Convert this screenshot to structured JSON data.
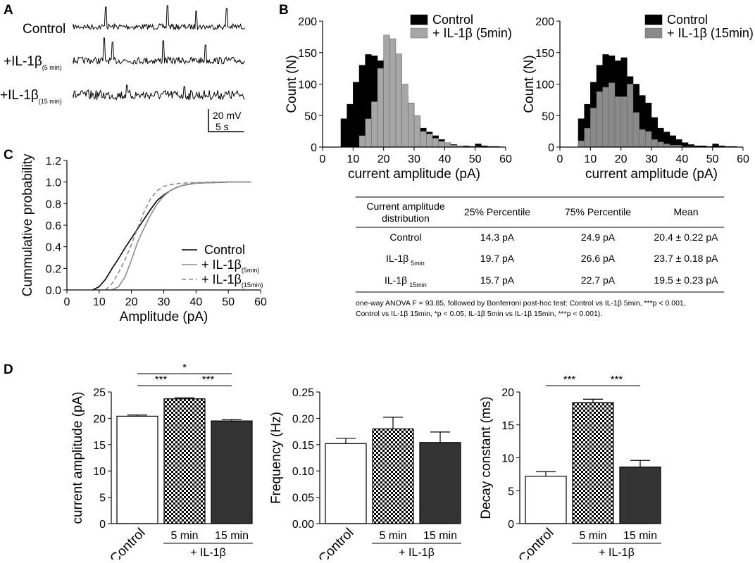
{
  "panels": {
    "a": "A",
    "b": "B",
    "c": "C",
    "d": "D"
  },
  "traces": {
    "labels": [
      {
        "main": "Control",
        "sub": ""
      },
      {
        "main": "+IL-1β",
        "sub": "(5 min)"
      },
      {
        "main": "+IL-1β",
        "sub": "(15 min)"
      }
    ],
    "scale_v": "20 mV",
    "scale_t": "5 s"
  },
  "table": {
    "headers": [
      "Current amplitude distribution",
      "25% Percentile",
      "75% Percentile",
      "Mean"
    ],
    "header_line1": "Current amplitude",
    "header_line2": "distribution",
    "rows": [
      {
        "label": "Control",
        "sub": "",
        "p25": "14.3 pA",
        "p75": "24.9 pA",
        "mean": "20.4 ± 0.22 pA"
      },
      {
        "label": "IL-1β",
        "sub": "5min",
        "p25": "19.7 pA",
        "p75": "26.6 pA",
        "mean": "23.7 ± 0.18 pA"
      },
      {
        "label": "IL-1β",
        "sub": "15min",
        "p25": "15.7 pA",
        "p75": "22.7 pA",
        "mean": "19.5 ± 0.23 pA"
      }
    ],
    "note_line1": "one-way ANOVA F = 93.85, followed by Bonferroni post-hoc test: Control vs IL-1β 5min, ***p < 0.001,",
    "note_line2": "Control vs IL-1β 15min, *p < 0.05, IL-1β 5min vs IL-1β 15min, ***p < 0.001)."
  },
  "chart_data": [
    {
      "id": "B-left",
      "type": "bar",
      "title": "",
      "xlabel": "current amplitude (pA)",
      "ylabel": "Count (N)",
      "xlim": [
        0,
        60
      ],
      "ylim": [
        0,
        200
      ],
      "xticks": [
        0,
        10,
        20,
        30,
        40,
        50,
        60
      ],
      "yticks": [
        0,
        50,
        100,
        150,
        200
      ],
      "bin_width": 2,
      "bin_starts": [
        6,
        8,
        10,
        12,
        14,
        16,
        18,
        20,
        22,
        24,
        26,
        28,
        30,
        32,
        34,
        36,
        38,
        40,
        42,
        44,
        46,
        48,
        50,
        52,
        54,
        56
      ],
      "legend": [
        "Control",
        "+ IL-1β (5min)"
      ],
      "series": [
        {
          "name": "Control",
          "color": "#000000",
          "values": [
            45,
            68,
            103,
            130,
            147,
            145,
            137,
            142,
            112,
            100,
            82,
            70,
            47,
            30,
            24,
            18,
            12,
            7,
            4,
            2,
            2,
            1,
            5,
            2,
            1,
            1
          ]
        },
        {
          "name": "+ IL-1β (5min)",
          "color": "#a6a6a6",
          "values": [
            0,
            0,
            0,
            18,
            45,
            72,
            125,
            178,
            172,
            148,
            100,
            70,
            50,
            25,
            21,
            14,
            9,
            7,
            3,
            2,
            1,
            0,
            1,
            0,
            0,
            0
          ]
        }
      ]
    },
    {
      "id": "B-right",
      "type": "bar",
      "title": "",
      "xlabel": "current amplitude (pA)",
      "ylabel": "Count (N)",
      "xlim": [
        0,
        60
      ],
      "ylim": [
        0,
        200
      ],
      "xticks": [
        0,
        10,
        20,
        30,
        40,
        50,
        60
      ],
      "yticks": [
        0,
        50,
        100,
        150,
        200
      ],
      "bin_width": 2,
      "bin_starts": [
        6,
        8,
        10,
        12,
        14,
        16,
        18,
        20,
        22,
        24,
        26,
        28,
        30,
        32,
        34,
        36,
        38,
        40,
        42,
        44,
        46,
        48,
        50,
        52,
        54,
        56
      ],
      "legend": [
        "Control",
        "+ IL-1β (15min)"
      ],
      "series": [
        {
          "name": "Control",
          "color": "#000000",
          "values": [
            45,
            68,
            103,
            130,
            147,
            145,
            137,
            142,
            112,
            100,
            82,
            70,
            47,
            30,
            24,
            18,
            12,
            7,
            4,
            2,
            2,
            1,
            5,
            2,
            1,
            1
          ]
        },
        {
          "name": "+ IL-1β (15min)",
          "color": "#8a8a8a",
          "values": [
            10,
            30,
            62,
            88,
            95,
            102,
            80,
            80,
            100,
            55,
            28,
            25,
            12,
            8,
            5,
            3,
            3,
            1,
            1,
            0,
            0,
            0,
            0,
            0,
            0,
            0
          ]
        }
      ]
    },
    {
      "id": "C",
      "type": "line",
      "title": "",
      "xlabel": "Amplitude (pA)",
      "ylabel": "Cummulative probability",
      "xlim": [
        0,
        60
      ],
      "ylim": [
        0,
        1.2
      ],
      "xticks": [
        0,
        10,
        20,
        30,
        40,
        50,
        60
      ],
      "yticks": [
        0.0,
        0.2,
        0.4,
        0.6,
        0.8,
        1.0,
        1.2
      ],
      "legend": [
        "Control",
        "+ IL-1β(5min)",
        "+ IL-1β(15min)"
      ],
      "series": [
        {
          "name": "Control",
          "color": "#000000",
          "dash": "",
          "x": [
            8,
            10,
            12,
            14,
            16,
            18,
            20,
            22,
            24,
            26,
            28,
            30,
            32,
            34,
            36,
            38,
            40,
            45,
            50,
            57
          ],
          "y": [
            0.0,
            0.03,
            0.1,
            0.2,
            0.29,
            0.39,
            0.48,
            0.57,
            0.66,
            0.75,
            0.83,
            0.88,
            0.92,
            0.95,
            0.97,
            0.98,
            0.99,
            0.995,
            1.0,
            1.0
          ]
        },
        {
          "name": "+ IL-1β(5min)",
          "color": "#8c8c8c",
          "dash": "",
          "x": [
            14,
            16,
            18,
            20,
            22,
            24,
            26,
            28,
            30,
            32,
            34,
            36,
            38,
            40,
            45,
            50,
            57
          ],
          "y": [
            0.0,
            0.03,
            0.12,
            0.28,
            0.45,
            0.58,
            0.7,
            0.8,
            0.87,
            0.92,
            0.95,
            0.97,
            0.98,
            0.99,
            0.995,
            1.0,
            1.0
          ]
        },
        {
          "name": "+ IL-1β(15min)",
          "color": "#8c8c8c",
          "dash": "6,4",
          "x": [
            12,
            14,
            16,
            18,
            20,
            22,
            24,
            26,
            28,
            30,
            32,
            34,
            36,
            40,
            45,
            50,
            57
          ],
          "y": [
            0.0,
            0.06,
            0.16,
            0.28,
            0.42,
            0.58,
            0.73,
            0.85,
            0.92,
            0.96,
            0.975,
            0.985,
            0.99,
            0.995,
            1.0,
            1.0,
            1.0
          ]
        }
      ]
    },
    {
      "id": "D-amplitude",
      "type": "bar",
      "ylabel": "current amplitude (pA)",
      "ylim": [
        0,
        25
      ],
      "yticks": [
        0,
        5,
        10,
        15,
        20,
        25
      ],
      "categories": [
        "Control",
        "5 min",
        "15 min"
      ],
      "group_label": "+ IL-1β",
      "values": [
        20.4,
        23.7,
        19.5
      ],
      "errors": [
        0.22,
        0.18,
        0.23
      ],
      "fills": [
        "white",
        "checker",
        "dark"
      ],
      "significance": [
        {
          "from": 0,
          "to": 2,
          "label": "*"
        },
        {
          "from": 0,
          "to": 1,
          "label": "***"
        },
        {
          "from": 1,
          "to": 2,
          "label": "***"
        }
      ]
    },
    {
      "id": "D-frequency",
      "type": "bar",
      "ylabel": "Frequency (Hz)",
      "ylim": [
        0,
        0.25
      ],
      "yticks": [
        0.0,
        0.05,
        0.1,
        0.15,
        0.2,
        0.25
      ],
      "ytick_labels": [
        "0.00",
        "0.05",
        "0.10",
        "0.15",
        "0.20",
        "0.25"
      ],
      "categories": [
        "Control",
        "5 min",
        "15 min"
      ],
      "group_label": "+ IL-1β",
      "values": [
        0.152,
        0.18,
        0.154
      ],
      "errors": [
        0.01,
        0.022,
        0.02
      ],
      "fills": [
        "white",
        "checker",
        "dark"
      ],
      "significance": []
    },
    {
      "id": "D-decay",
      "type": "bar",
      "ylabel": "Decay constant (ms)",
      "ylim": [
        0,
        20
      ],
      "yticks": [
        0,
        5,
        10,
        15,
        20
      ],
      "categories": [
        "Control",
        "5 min",
        "15 min"
      ],
      "group_label": "+ IL-1β",
      "values": [
        7.2,
        18.4,
        8.6
      ],
      "errors": [
        0.7,
        0.5,
        1.0
      ],
      "fills": [
        "white",
        "checker",
        "dark"
      ],
      "significance": [
        {
          "from": 0,
          "to": 1,
          "label": "***"
        },
        {
          "from": 1,
          "to": 2,
          "label": "***"
        }
      ]
    }
  ]
}
